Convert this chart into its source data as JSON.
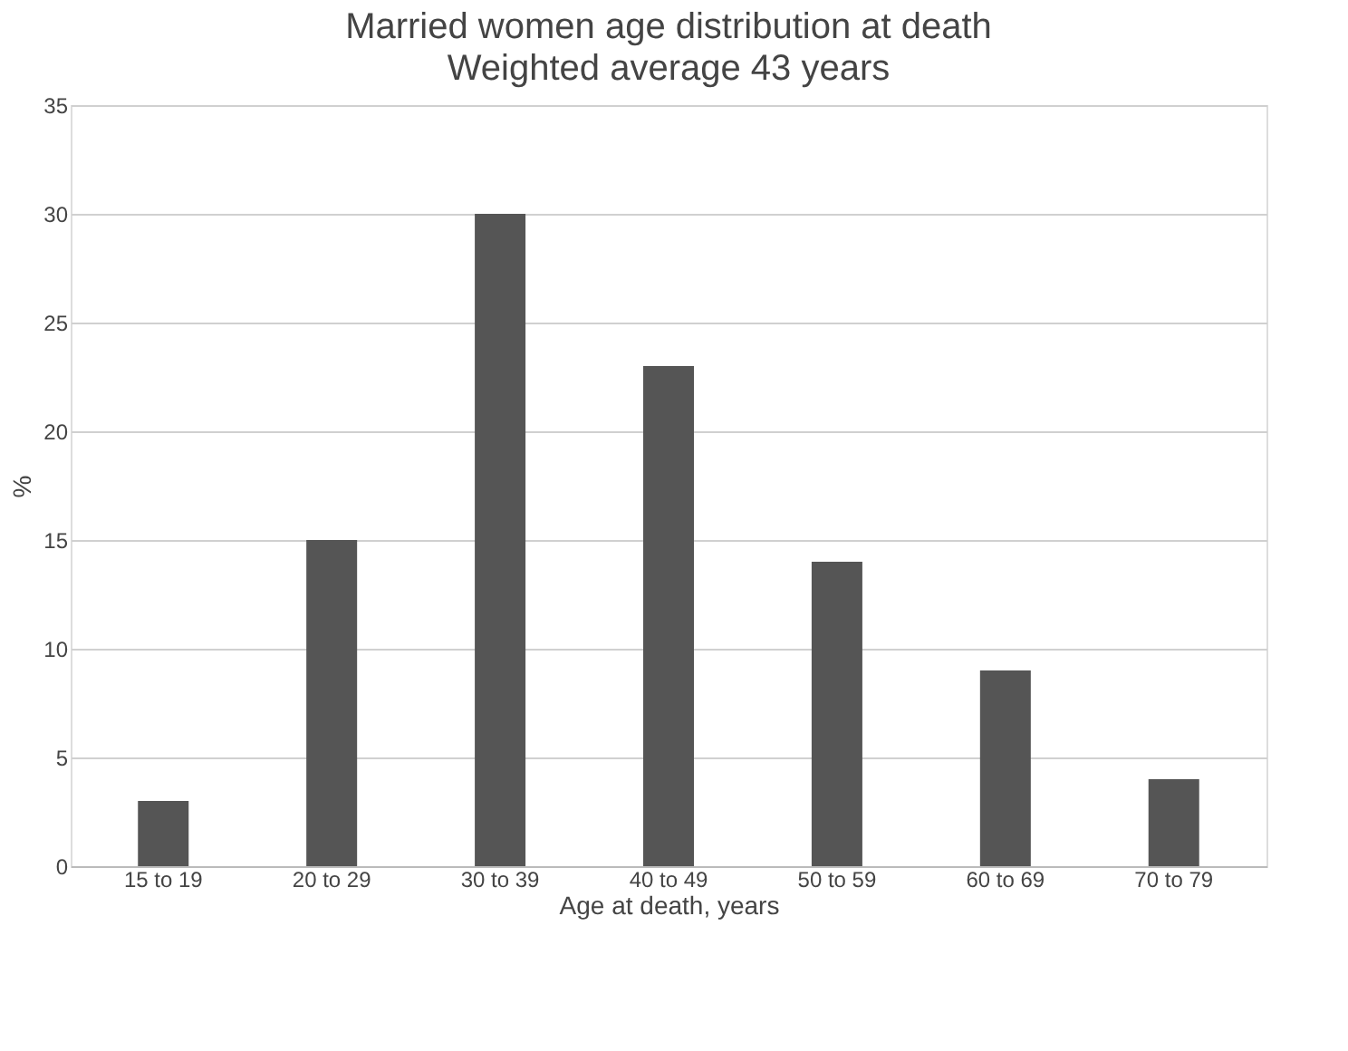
{
  "chart_data": {
    "type": "bar",
    "title": "Married women age distribution at death",
    "subtitle": "Weighted average 43 years",
    "xlabel": "Age at death, years",
    "ylabel": "%",
    "categories": [
      "15 to 19",
      "20 to 29",
      "30 to 39",
      "40 to 49",
      "50 to 59",
      "60 to 69",
      "70 to 79"
    ],
    "values": [
      3,
      15,
      30,
      23,
      14,
      9,
      4
    ],
    "color": "#555555",
    "ylim": [
      0,
      35
    ],
    "yticks": [
      0,
      5,
      10,
      15,
      20,
      25,
      30,
      35
    ],
    "grid": "y"
  }
}
